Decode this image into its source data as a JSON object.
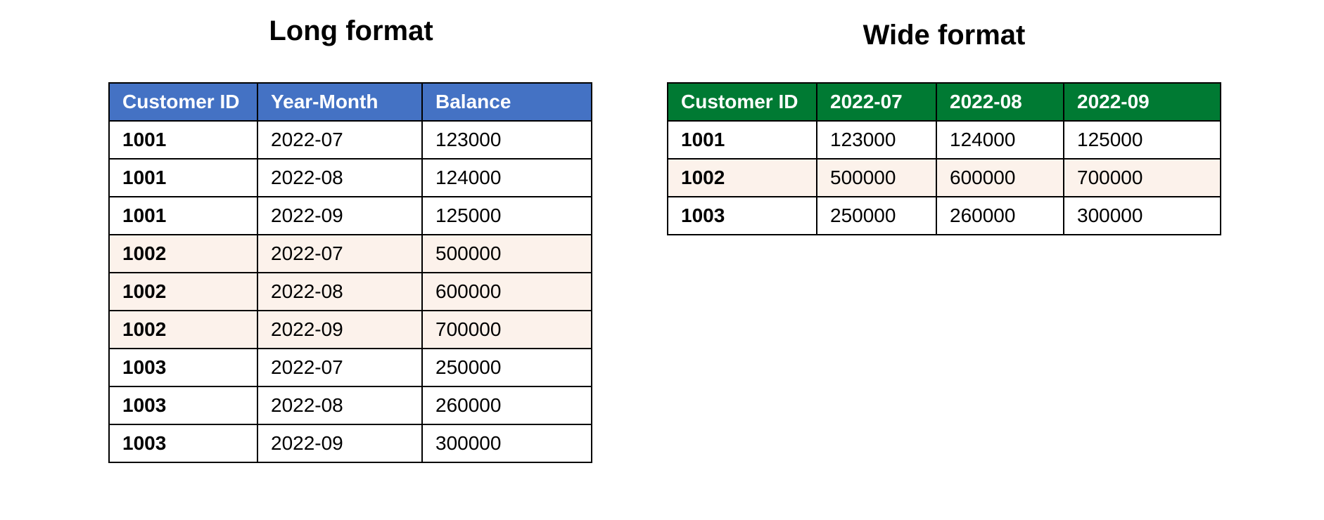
{
  "colors": {
    "long_header": "#4472C4",
    "wide_header": "#007A33",
    "highlight_row": "#FCF2EB",
    "plain_row": "#FFFFFF"
  },
  "long": {
    "title": "Long format",
    "columns": [
      "Customer ID",
      "Year-Month",
      "Balance"
    ],
    "rows": [
      [
        "1001",
        "2022-07",
        "123000"
      ],
      [
        "1001",
        "2022-08",
        "124000"
      ],
      [
        "1001",
        "2022-09",
        "125000"
      ],
      [
        "1002",
        "2022-07",
        "500000"
      ],
      [
        "1002",
        "2022-08",
        "600000"
      ],
      [
        "1002",
        "2022-09",
        "700000"
      ],
      [
        "1003",
        "2022-07",
        "250000"
      ],
      [
        "1003",
        "2022-08",
        "260000"
      ],
      [
        "1003",
        "2022-09",
        "300000"
      ]
    ]
  },
  "wide": {
    "title": "Wide format",
    "columns": [
      "Customer ID",
      "2022-07",
      "2022-08",
      "2022-09"
    ],
    "rows": [
      [
        "1001",
        "123000",
        "124000",
        "125000"
      ],
      [
        "1002",
        "500000",
        "600000",
        "700000"
      ],
      [
        "1003",
        "250000",
        "260000",
        "300000"
      ]
    ]
  },
  "highlight_customer": "1002"
}
